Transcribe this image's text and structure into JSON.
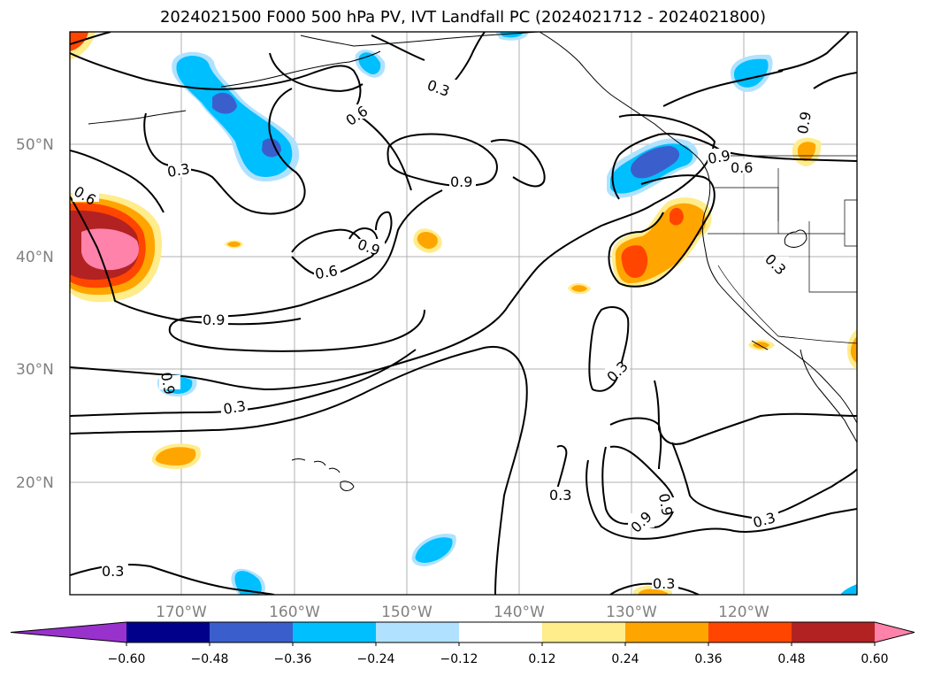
{
  "title": "2024021500 F000 500 hPa PV, IVT Landfall PC (2024021712 - 2024021800)",
  "lat_labels": [
    "50°N",
    "40°N",
    "30°N",
    "20°N"
  ],
  "lon_labels": [
    "170°W",
    "160°W",
    "150°W",
    "140°W",
    "130°W",
    "120°W"
  ],
  "contour_labels": [
    "0.3",
    "0.6",
    "0.9"
  ],
  "colorbar": {
    "ticks": [
      "−0.60",
      "−0.48",
      "−0.36",
      "−0.24",
      "−0.12",
      "0.12",
      "0.24",
      "0.36",
      "0.48",
      "0.60"
    ],
    "colors": [
      "#9932cc",
      "#00008b",
      "#3a5fcd",
      "#00bfff",
      "#b0e2ff",
      "#ffffff",
      "#ffec8b",
      "#ffa500",
      "#ff4500",
      "#b22222",
      "#ff82ab"
    ]
  }
}
